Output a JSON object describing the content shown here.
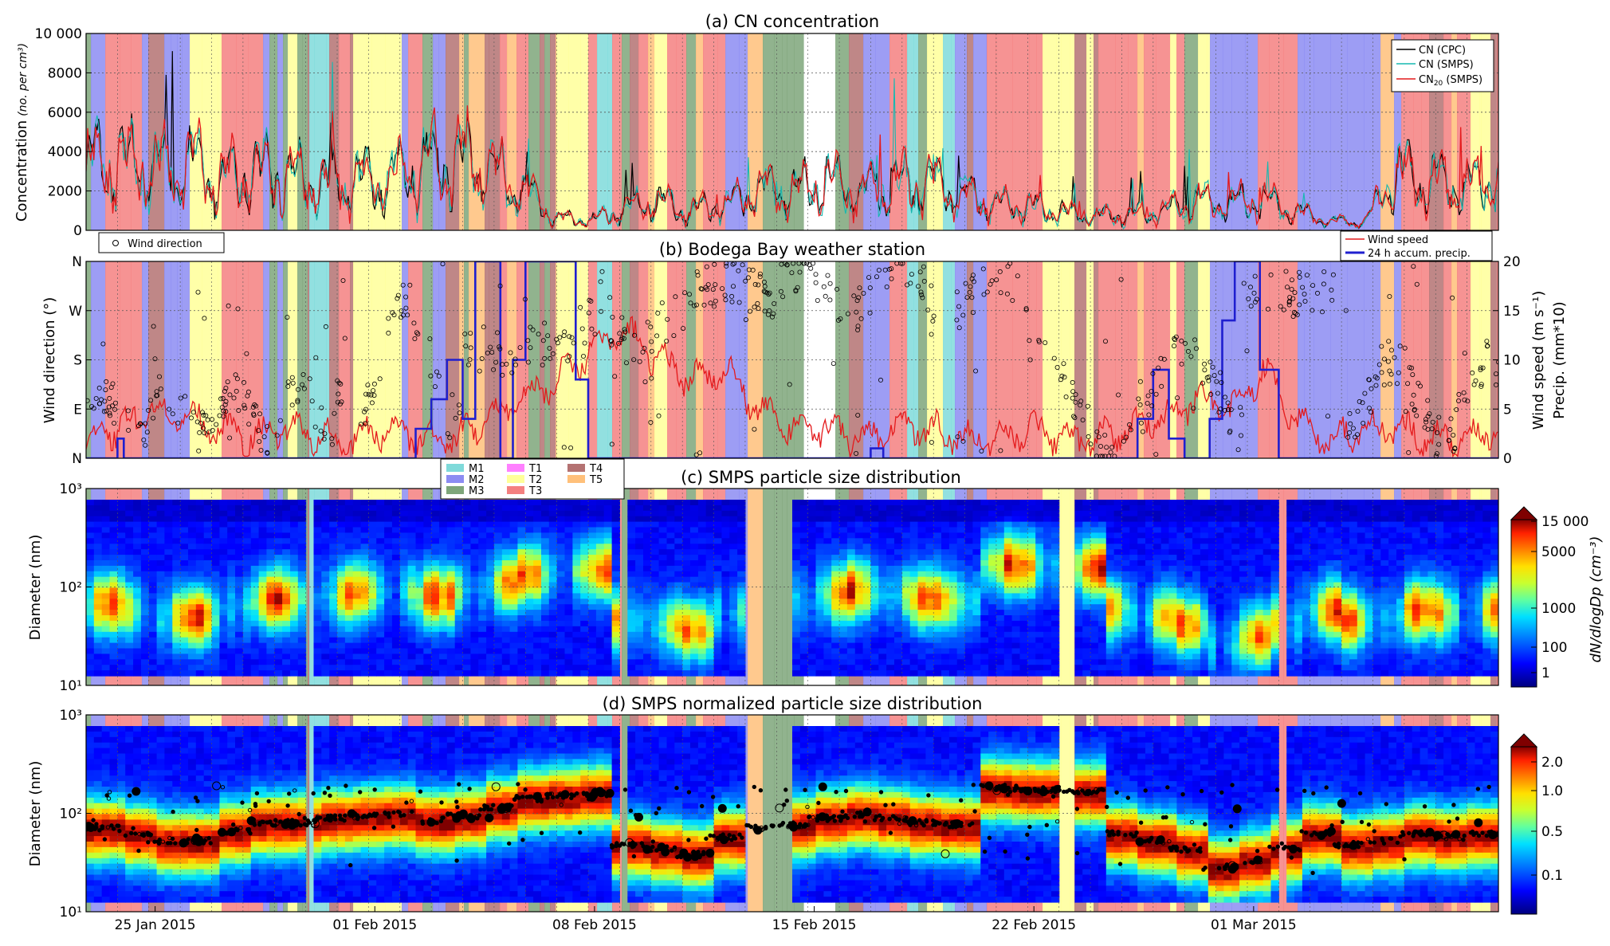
{
  "chart_data": [
    {
      "type": "line",
      "title": "(a)  CN concentration",
      "ylabel_main": "Concentration",
      "ylabel_unit": "(no. per cm³)",
      "ylim": [
        0,
        10000
      ],
      "yticks": [
        "0",
        "2000",
        "4000",
        "6000",
        "8000",
        "10 000"
      ],
      "legend_position": "top-right",
      "series": [
        {
          "name": "CN (CPC)",
          "color": "#000000"
        },
        {
          "name": "CN (SMPS)",
          "color": "#17b8b0"
        },
        {
          "name": "CN20 (SMPS)",
          "color": "#e41a1c"
        }
      ],
      "daily_mean_cn_approx": [
        3200,
        3500,
        3100,
        3400,
        2600,
        2900,
        2800,
        2300,
        2500,
        2600,
        3300,
        3600,
        3000,
        2100,
        600,
        500,
        1100,
        1500,
        1000,
        1300,
        2200,
        2000,
        2600,
        1800,
        2300,
        2400,
        1900,
        1300,
        1200,
        900,
        700,
        800,
        1000,
        1500,
        1300,
        1600,
        900,
        500,
        400,
        2800,
        2500,
        2200,
        2600
      ]
    },
    {
      "type": "line",
      "title": "(b)  Bodega Bay  weather station",
      "ylabel_left": "Wind direction (°)",
      "ylabel_right": "Wind speed (m s⁻¹)",
      "ylabel_right2": "Precip. (mm*10)",
      "yticks_left": [
        "N",
        "E",
        "S",
        "W",
        "N"
      ],
      "yticks_right": [
        "0",
        "5",
        "10",
        "15",
        "20"
      ],
      "ylim_right": [
        0,
        20
      ],
      "series": [
        {
          "name": "Wind direction",
          "marker": "circle",
          "color": "#000000"
        },
        {
          "name": "Wind speed",
          "color": "#e41a1c"
        },
        {
          "name": "24 h accum. precip.",
          "color": "#1f1fcf"
        }
      ],
      "daily_mean_wind_speed_approx": [
        2,
        3,
        5,
        4,
        3,
        2,
        3,
        2,
        2,
        3,
        2,
        2,
        4,
        6,
        8,
        11,
        13,
        10,
        8,
        9,
        5,
        3,
        3,
        2,
        3,
        3,
        2,
        2,
        3,
        2,
        2,
        3,
        4,
        6,
        5,
        9,
        4,
        2,
        3,
        3,
        2,
        2,
        3
      ]
    },
    {
      "type": "heatmap",
      "title": "(c)  SMPS particle size distribution",
      "ylabel": "Diameter (nm)",
      "yscale": "log",
      "ylim": [
        10,
        1000
      ],
      "yticks": [
        "10¹",
        "10²",
        "10³"
      ],
      "colorbar_label": "dN/dlogDp (cm⁻³)",
      "colorbar_ticks": [
        "15 000",
        "5000",
        "1000",
        "100",
        "1"
      ],
      "legend_position": "top-left",
      "air_mass_classes": [
        {
          "name": "M1",
          "color": "#7fdada"
        },
        {
          "name": "M2",
          "color": "#8c8cf2"
        },
        {
          "name": "M3",
          "color": "#7ea67a"
        },
        {
          "name": "T1",
          "color": "#ff80ff"
        },
        {
          "name": "T2",
          "color": "#ffff99"
        },
        {
          "name": "T3",
          "color": "#f48080"
        },
        {
          "name": "T4",
          "color": "#b47272"
        },
        {
          "name": "T5",
          "color": "#ffc07a"
        }
      ]
    },
    {
      "type": "heatmap",
      "title": "(d)  SMPS normalized particle size distribution",
      "ylabel": "Diameter (nm)",
      "yscale": "log",
      "ylim": [
        10,
        1000
      ],
      "yticks": [
        "10¹",
        "10²",
        "10³"
      ],
      "colorbar_ticks": [
        "2.0",
        "1.0",
        "0.5",
        "0.1"
      ],
      "xticks": [
        "25 Jan 2015",
        "01 Feb 2015",
        "08 Feb 2015",
        "15 Feb 2015",
        "22 Feb 2015",
        "01 Mar 2015"
      ],
      "mode_diameter_daily_approx": [
        70,
        60,
        50,
        50,
        65,
        80,
        80,
        90,
        95,
        100,
        85,
        95,
        120,
        150,
        160,
        170,
        45,
        40,
        35,
        55,
        70,
        75,
        90,
        100,
        90,
        80,
        75,
        200,
        190,
        190,
        180,
        60,
        50,
        40,
        25,
        30,
        40,
        60,
        45,
        50,
        60,
        55,
        60
      ]
    }
  ],
  "legend_labels": {
    "cpc": "CN (CPC)",
    "smps": "CN (SMPS)",
    "cn20_prefix": "CN",
    "cn20_sub": "20",
    "cn20_suffix": " (SMPS)",
    "wind_dir": "Wind direction",
    "wind_speed": "Wind speed",
    "precip": "24 h accum. precip."
  }
}
